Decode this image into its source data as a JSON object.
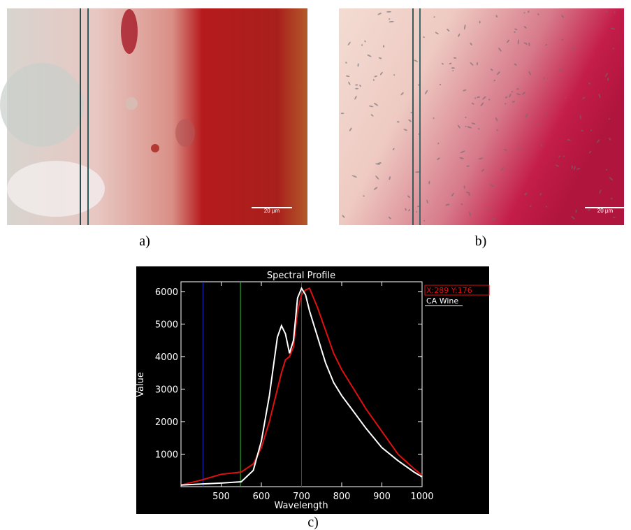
{
  "figure_labels": [
    "a)",
    "b)",
    "c)"
  ],
  "scale_bars": [
    "20 µm",
    "20 µm"
  ],
  "chart_data": {
    "type": "line",
    "title": "Spectral Profile",
    "x_label": "Wavelength",
    "y_label": "Value",
    "x": [
      400,
      450,
      500,
      550,
      580,
      600,
      620,
      640,
      650,
      660,
      670,
      680,
      690,
      700,
      710,
      720,
      740,
      760,
      780,
      800,
      830,
      860,
      900,
      940,
      980,
      1000
    ],
    "series": [
      {
        "name": "X:289 Y:176",
        "color": "#e01010",
        "values": [
          50,
          200,
          380,
          450,
          700,
          1200,
          2000,
          3000,
          3500,
          3900,
          4000,
          4300,
          5400,
          5900,
          6050,
          6100,
          5500,
          4800,
          4100,
          3600,
          3000,
          2400,
          1700,
          1000,
          550,
          350
        ]
      },
      {
        "name": "CA Wine",
        "color": "#ffffff",
        "values": [
          50,
          80,
          110,
          150,
          500,
          1400,
          2800,
          4600,
          4950,
          4700,
          4100,
          4500,
          5800,
          6100,
          5900,
          5400,
          4600,
          3800,
          3200,
          2800,
          2300,
          1800,
          1200,
          800,
          450,
          300
        ]
      }
    ],
    "markers": [
      {
        "x": 455,
        "color": "#2030c0"
      },
      {
        "x": 548,
        "color": "#30c030"
      },
      {
        "x": 700,
        "color": "#d01010"
      }
    ],
    "xlim": [
      400,
      1000
    ],
    "ylim": [
      0,
      6300
    ],
    "xticks": [
      500,
      600,
      700,
      800,
      900,
      1000
    ],
    "yticks": [
      1000,
      2000,
      3000,
      4000,
      5000,
      6000
    ]
  }
}
